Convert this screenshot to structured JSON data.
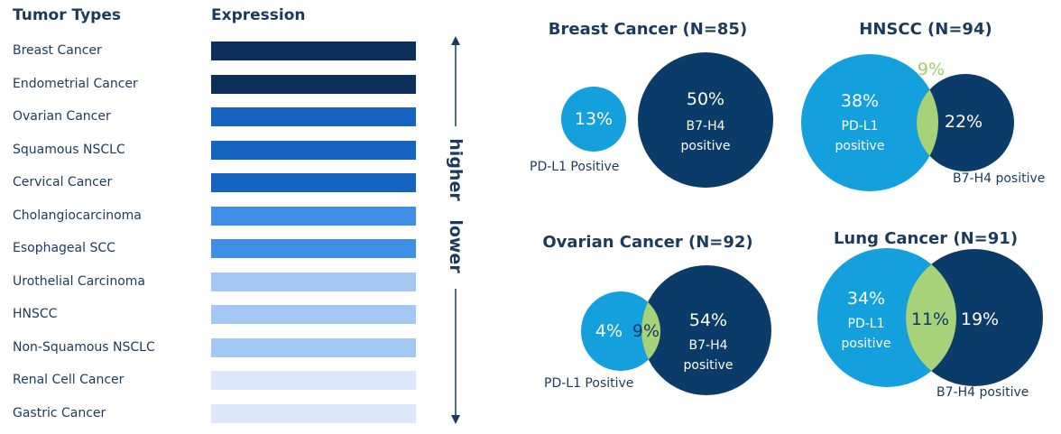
{
  "headers": {
    "tumor_types": "Tumor Types",
    "expression": "Expression"
  },
  "tumors": [
    {
      "name": "Breast Cancer",
      "color": "#0b2e5a"
    },
    {
      "name": "Endometrial Cancer",
      "color": "#0b2e5a"
    },
    {
      "name": "Ovarian Cancer",
      "color": "#1565c0"
    },
    {
      "name": "Squamous NSCLC",
      "color": "#1565c0"
    },
    {
      "name": "Cervical Cancer",
      "color": "#1565c0"
    },
    {
      "name": "Cholangiocarcinoma",
      "color": "#3f8fe6"
    },
    {
      "name": "Esophageal SCC",
      "color": "#3f8fe6"
    },
    {
      "name": "Urothelial Carcinoma",
      "color": "#a3c8f4"
    },
    {
      "name": "HNSCC",
      "color": "#a3c8f4"
    },
    {
      "name": "Non-Squamous NSCLC",
      "color": "#a3c8f4"
    },
    {
      "name": "Renal Cell Cancer",
      "color": "#dbe9fa"
    },
    {
      "name": "Gastric Cancer",
      "color": "#dbe9fa"
    }
  ],
  "axis": {
    "higher": "higher",
    "lower": "lower"
  },
  "venns": {
    "breast": {
      "title": "Breast Cancer (N=85)",
      "pdl1_pct": "13%",
      "b7h4_pct": "50%",
      "b7h4_l1": "B7-H4",
      "b7h4_l2": "positive",
      "pdl1_ext": "PD-L1 Positive"
    },
    "hnscc": {
      "title": "HNSCC (N=94)",
      "pdl1_pct": "38%",
      "pdl1_l1": "PD-L1",
      "pdl1_l2": "positive",
      "overlap_pct": "9%",
      "b7h4_pct": "22%",
      "b7h4_ext": "B7-H4 positive"
    },
    "ovarian": {
      "title": "Ovarian Cancer (N=92)",
      "pdl1_pct": "4%",
      "overlap_pct": "9%",
      "b7h4_pct": "54%",
      "b7h4_l1": "B7-H4",
      "b7h4_l2": "positive",
      "pdl1_ext": "PD-L1 Positive"
    },
    "lung": {
      "title": "Lung Cancer (N=91)",
      "pdl1_pct": "34%",
      "pdl1_l1": "PD-L1",
      "pdl1_l2": "positive",
      "overlap_pct": "11%",
      "b7h4_pct": "19%",
      "b7h4_ext": "B7-H4 positive"
    }
  },
  "colors": {
    "pdl1": "#14a0dc",
    "b7h4": "#0b3b68",
    "overlap": "#a8d27a",
    "overlap_text_light": "#9bcf6a"
  }
}
